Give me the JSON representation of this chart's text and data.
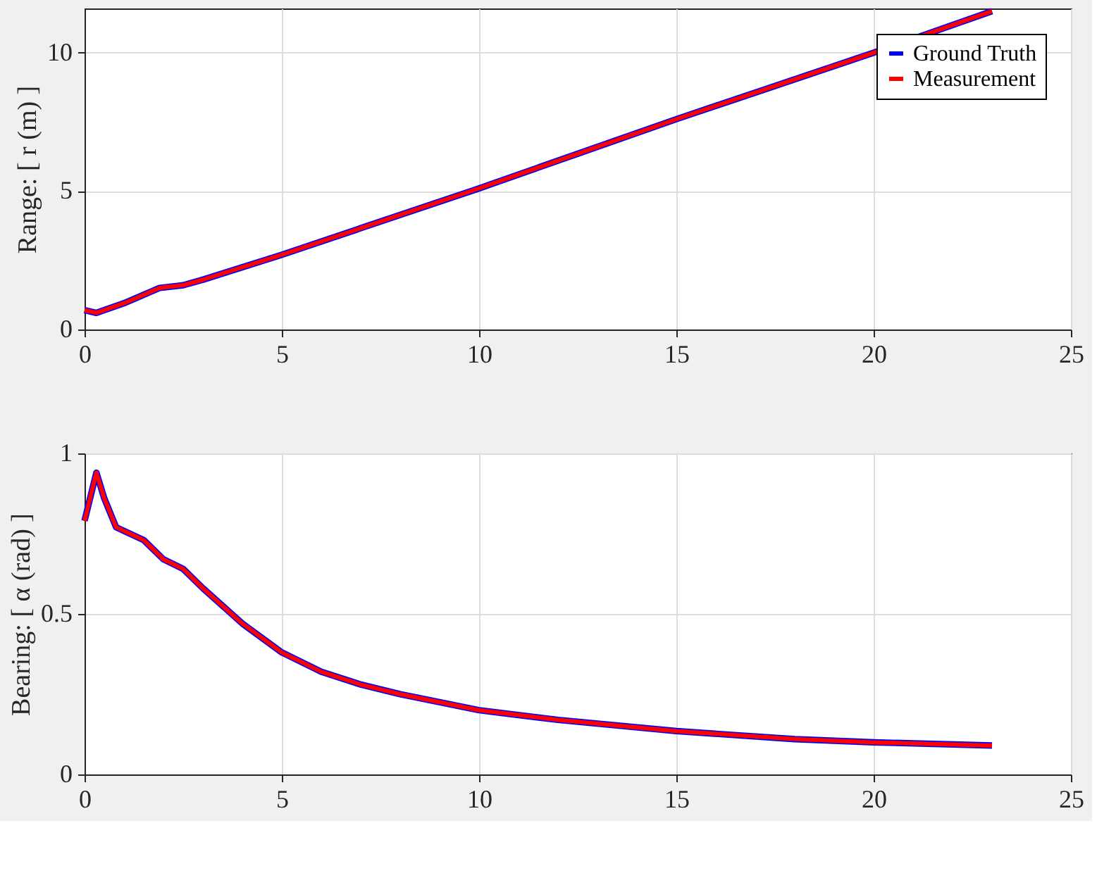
{
  "chart_data": [
    {
      "type": "line",
      "ylabel": "Range: [ r (m) ]",
      "xlim": [
        0,
        25
      ],
      "xticks": [
        0,
        5,
        10,
        15,
        20,
        25
      ],
      "ylim": [
        0,
        11.6
      ],
      "yticks": [
        0,
        5,
        10
      ],
      "grid": true,
      "legend": "top right",
      "line_style": "solid",
      "series": [
        {
          "name": "Ground Truth",
          "color": "#0000ff",
          "x": [
            0,
            0.3,
            1,
            1.9,
            2.5,
            3,
            5,
            7.5,
            10,
            12.5,
            15,
            17.5,
            20,
            23
          ],
          "values": [
            0.7,
            0.6,
            0.95,
            1.5,
            1.6,
            1.8,
            2.7,
            3.9,
            5.1,
            6.35,
            7.6,
            8.8,
            10,
            11.5
          ]
        },
        {
          "name": "Measurement",
          "color": "#ff0000",
          "x": [
            0,
            0.3,
            1,
            1.9,
            2.5,
            3,
            5,
            7.5,
            10,
            12.5,
            15,
            17.5,
            20,
            23
          ],
          "values": [
            0.7,
            0.6,
            0.95,
            1.5,
            1.6,
            1.8,
            2.7,
            3.9,
            5.1,
            6.35,
            7.6,
            8.8,
            10,
            11.5
          ]
        }
      ]
    },
    {
      "type": "line",
      "ylabel": "Bearing: [ α (rad) ]",
      "xlim": [
        0,
        25
      ],
      "xticks": [
        0,
        5,
        10,
        15,
        20,
        25
      ],
      "ylim": [
        0,
        1
      ],
      "yticks": [
        0,
        0.5,
        1
      ],
      "grid": true,
      "line_style": "solid",
      "series": [
        {
          "color": "#0000ff",
          "x": [
            0,
            0.3,
            0.5,
            0.8,
            1.5,
            2,
            2.5,
            3,
            4,
            5,
            6,
            7,
            8,
            10,
            12,
            15,
            18,
            20,
            23
          ],
          "values": [
            0.79,
            0.94,
            0.86,
            0.77,
            0.73,
            0.67,
            0.64,
            0.58,
            0.47,
            0.38,
            0.32,
            0.28,
            0.25,
            0.2,
            0.17,
            0.135,
            0.11,
            0.1,
            0.09
          ]
        },
        {
          "color": "#ff0000",
          "x": [
            0,
            0.3,
            0.5,
            0.8,
            1.5,
            2,
            2.5,
            3,
            4,
            5,
            6,
            7,
            8,
            10,
            12,
            15,
            18,
            20,
            23
          ],
          "values": [
            0.79,
            0.94,
            0.86,
            0.77,
            0.73,
            0.67,
            0.64,
            0.58,
            0.47,
            0.38,
            0.32,
            0.28,
            0.25,
            0.2,
            0.17,
            0.135,
            0.11,
            0.1,
            0.09
          ]
        }
      ]
    }
  ]
}
